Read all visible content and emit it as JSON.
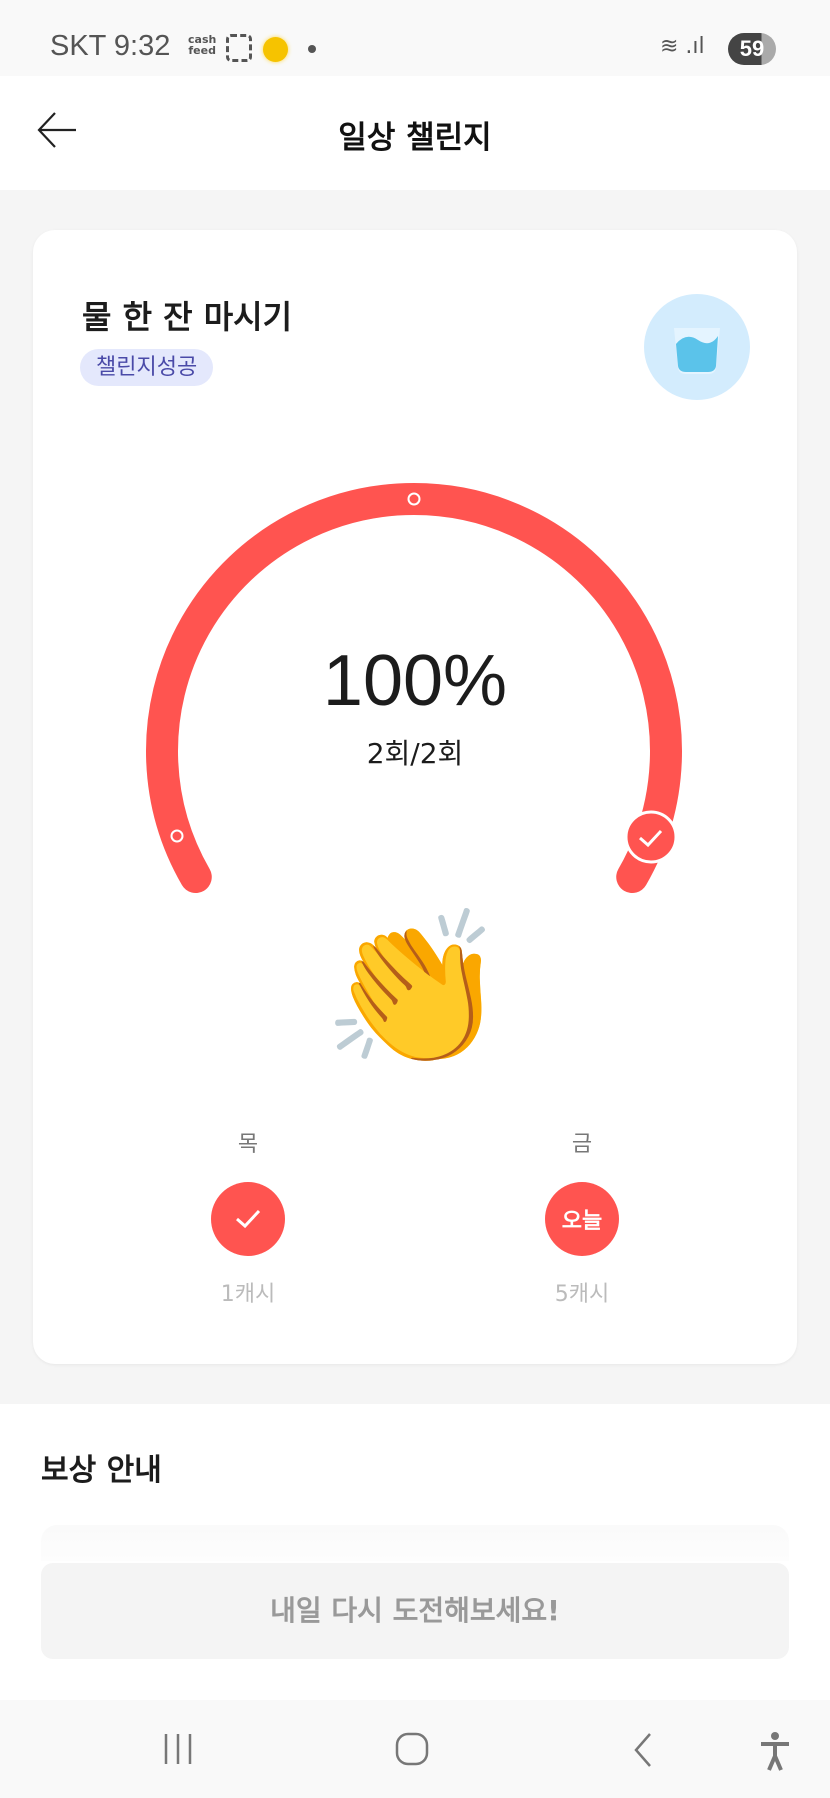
{
  "status_bar": {
    "carrier_time": "SKT 9:32",
    "app_badge": "cash feed",
    "battery": "59"
  },
  "header": {
    "title": "일상 챌린지"
  },
  "challenge": {
    "title": "물 한 잔 마시기",
    "badge": "챌린지성공",
    "progress_percent": 100,
    "progress_label": "100%",
    "count_label": "2회/2회",
    "accent": "#ff5450"
  },
  "days": [
    {
      "day": "목",
      "state": "done",
      "reward": "1캐시"
    },
    {
      "day": "금",
      "state": "today",
      "today_label": "오늘",
      "reward": "5캐시"
    }
  ],
  "reward": {
    "title": "보상 안내",
    "button": "내일 다시 도전해보세요!"
  },
  "icons": [
    "back-arrow-icon",
    "water-glass-icon",
    "clapping-hands-icon",
    "check-icon",
    "recent-apps-icon",
    "home-icon",
    "nav-back-icon",
    "accessibility-icon"
  ]
}
